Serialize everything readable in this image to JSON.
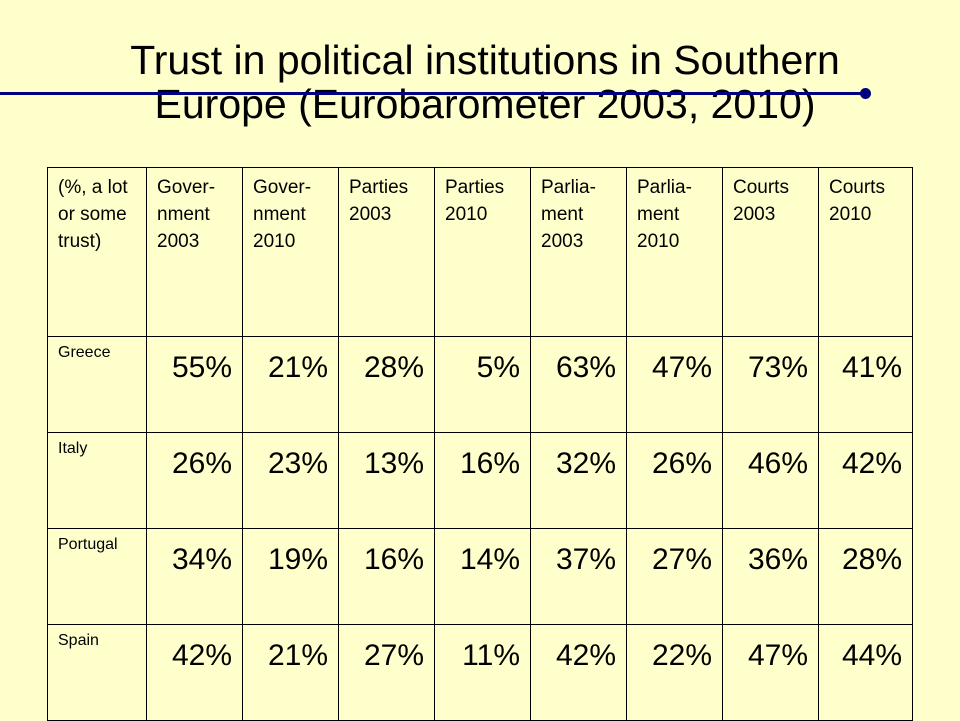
{
  "slide": {
    "title_line1": "Trust in political institutions in Southern",
    "title_line2": "Europe (Eurobarometer 2003, 2010)",
    "accent_color": "#000080",
    "background_color": "#ffffcc"
  },
  "table": {
    "corner_label": "(%, a lot or some trust)",
    "headers": [
      "Gover-\nnment\n2003",
      "Gover-\nnment\n2010",
      "Parties\n2003",
      "Parties\n2010",
      "Parlia-\nment\n2003",
      "Parlia-\nment\n2010",
      "Courts\n2003",
      "Courts\n2010"
    ],
    "rows": [
      {
        "country": "Greece",
        "values": [
          "55%",
          "21%",
          "28%",
          "5%",
          "63%",
          "47%",
          "73%",
          "41%"
        ]
      },
      {
        "country": "Italy",
        "values": [
          "26%",
          "23%",
          "13%",
          "16%",
          "32%",
          "26%",
          "46%",
          "42%"
        ]
      },
      {
        "country": "Portugal",
        "values": [
          "34%",
          "19%",
          "16%",
          "14%",
          "37%",
          "27%",
          "36%",
          "28%"
        ]
      },
      {
        "country": "Spain",
        "values": [
          "42%",
          "21%",
          "27%",
          "11%",
          "42%",
          "22%",
          "47%",
          "44%"
        ]
      }
    ]
  }
}
